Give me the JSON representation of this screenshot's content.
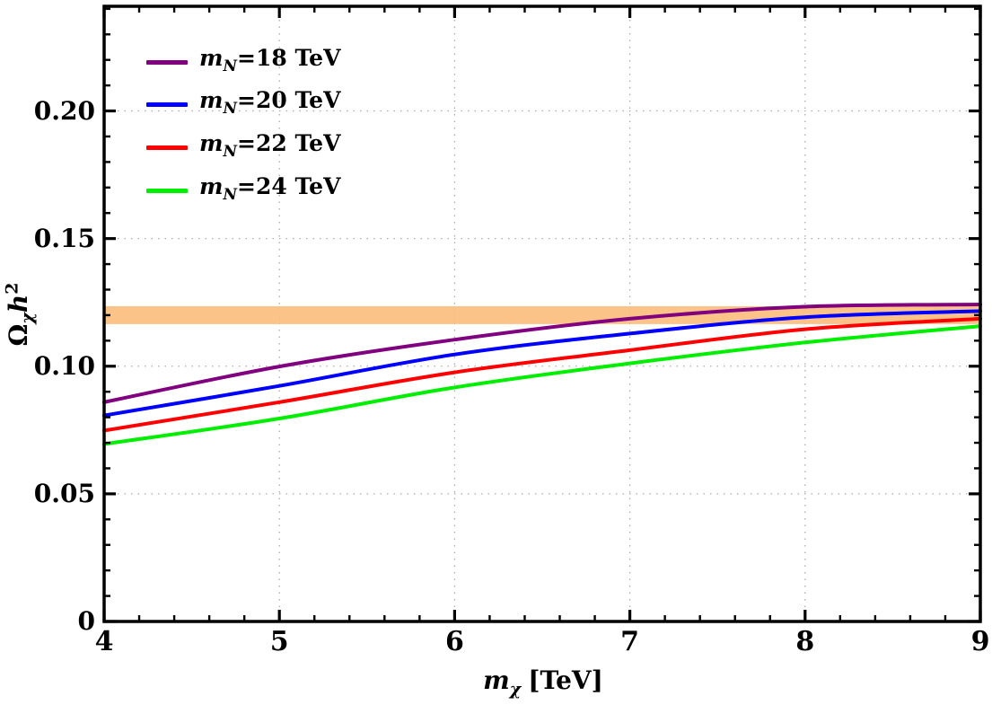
{
  "chart_data": {
    "type": "line",
    "title": "",
    "xlabel_parts": {
      "symbol": "m",
      "subscript": "χ",
      "unit": "[TeV]"
    },
    "ylabel_parts": {
      "symbol": "Ω",
      "subscript": "χ",
      "variable": "h",
      "exponent": "2"
    },
    "xlim": [
      4,
      9
    ],
    "ylim": [
      0,
      0.241
    ],
    "xticks": {
      "values": [
        4,
        5,
        6,
        7,
        8,
        9
      ],
      "labels": [
        "4",
        "5",
        "6",
        "7",
        "8",
        "9"
      ],
      "minor_step": 0.2
    },
    "yticks": {
      "values": [
        0,
        0.05,
        0.1,
        0.15,
        0.2
      ],
      "labels": [
        "0",
        "0.05",
        "0.10",
        "0.15",
        "0.20"
      ],
      "minor_step": 0.01
    },
    "grid": {
      "x": [
        5,
        6,
        7,
        8
      ],
      "y": [
        0.05,
        0.1,
        0.15,
        0.2
      ],
      "style": "dotted",
      "color": "#ABABAB"
    },
    "band": {
      "name": "relic-density-band",
      "y_min": 0.1165,
      "y_max": 0.1235,
      "color": "#FBBE7D"
    },
    "x": [
      4,
      5,
      6,
      7,
      8,
      9
    ],
    "series": [
      {
        "label": "m_N=18 TeV",
        "label_symbol": "m",
        "label_subscript": "N",
        "label_value": "=18 TeV",
        "color": "#800080",
        "values": [
          0.0859,
          0.0999,
          0.1104,
          0.1186,
          0.1233,
          0.1242
        ]
      },
      {
        "label": "m_N=20 TeV",
        "label_symbol": "m",
        "label_subscript": "N",
        "label_value": "=20 TeV",
        "color": "#0000FF",
        "values": [
          0.0807,
          0.0923,
          0.1046,
          0.1128,
          0.1192,
          0.1216
        ]
      },
      {
        "label": "m_N=22 TeV",
        "label_symbol": "m",
        "label_subscript": "N",
        "label_value": "=22 TeV",
        "color": "#FF0000",
        "values": [
          0.0748,
          0.0859,
          0.0976,
          0.1063,
          0.1145,
          0.1186
        ]
      },
      {
        "label": "m_N=24 TeV",
        "label_symbol": "m",
        "label_subscript": "N",
        "label_value": "=24 TeV",
        "color": "#00EE00",
        "values": [
          0.0695,
          0.0795,
          0.0917,
          0.1011,
          0.1093,
          0.1157
        ]
      }
    ],
    "legend": {
      "position": "top-left"
    },
    "frame_color": "#000000"
  }
}
